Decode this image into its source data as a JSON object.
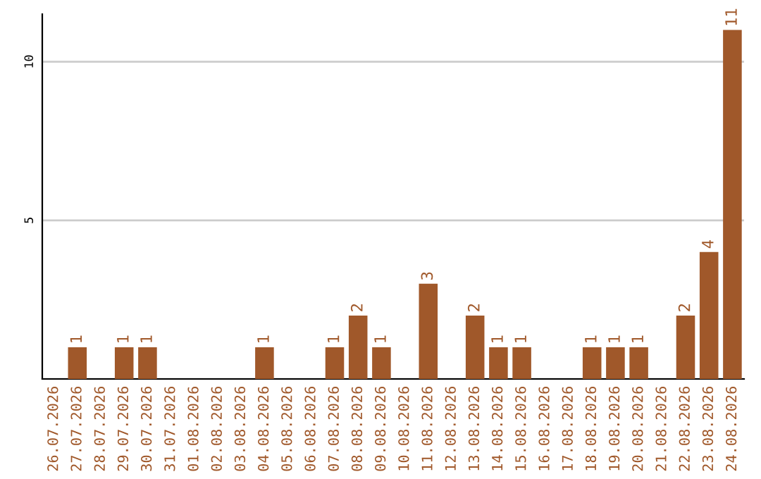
{
  "chart_data": {
    "type": "bar",
    "categories": [
      "26.07.2026",
      "27.07.2026",
      "28.07.2026",
      "29.07.2026",
      "30.07.2026",
      "31.07.2026",
      "01.08.2026",
      "02.08.2026",
      "03.08.2026",
      "04.08.2026",
      "05.08.2026",
      "06.08.2026",
      "07.08.2026",
      "08.08.2026",
      "09.08.2026",
      "10.08.2026",
      "11.08.2026",
      "12.08.2026",
      "13.08.2026",
      "14.08.2026",
      "15.08.2026",
      "16.08.2026",
      "17.08.2026",
      "18.08.2026",
      "19.08.2026",
      "20.08.2026",
      "21.08.2026",
      "22.08.2026",
      "23.08.2026",
      "24.08.2026"
    ],
    "values": [
      0,
      1,
      0,
      1,
      1,
      0,
      0,
      0,
      0,
      1,
      0,
      0,
      1,
      2,
      1,
      0,
      3,
      0,
      2,
      1,
      1,
      0,
      0,
      1,
      1,
      1,
      0,
      2,
      4,
      11
    ],
    "value_labels": [
      null,
      "1",
      null,
      "1",
      "1",
      null,
      null,
      null,
      null,
      "1",
      null,
      null,
      "1",
      "2",
      "1",
      null,
      "3",
      null,
      "2",
      "1",
      "1",
      null,
      null,
      "1",
      "1",
      "1",
      null,
      "2",
      "4",
      "11"
    ],
    "color": "#a0582a",
    "ylim": [
      0,
      11.5
    ],
    "yticks": [
      {
        "value": 0,
        "label": null
      },
      5,
      10
    ],
    "grid": "y"
  }
}
